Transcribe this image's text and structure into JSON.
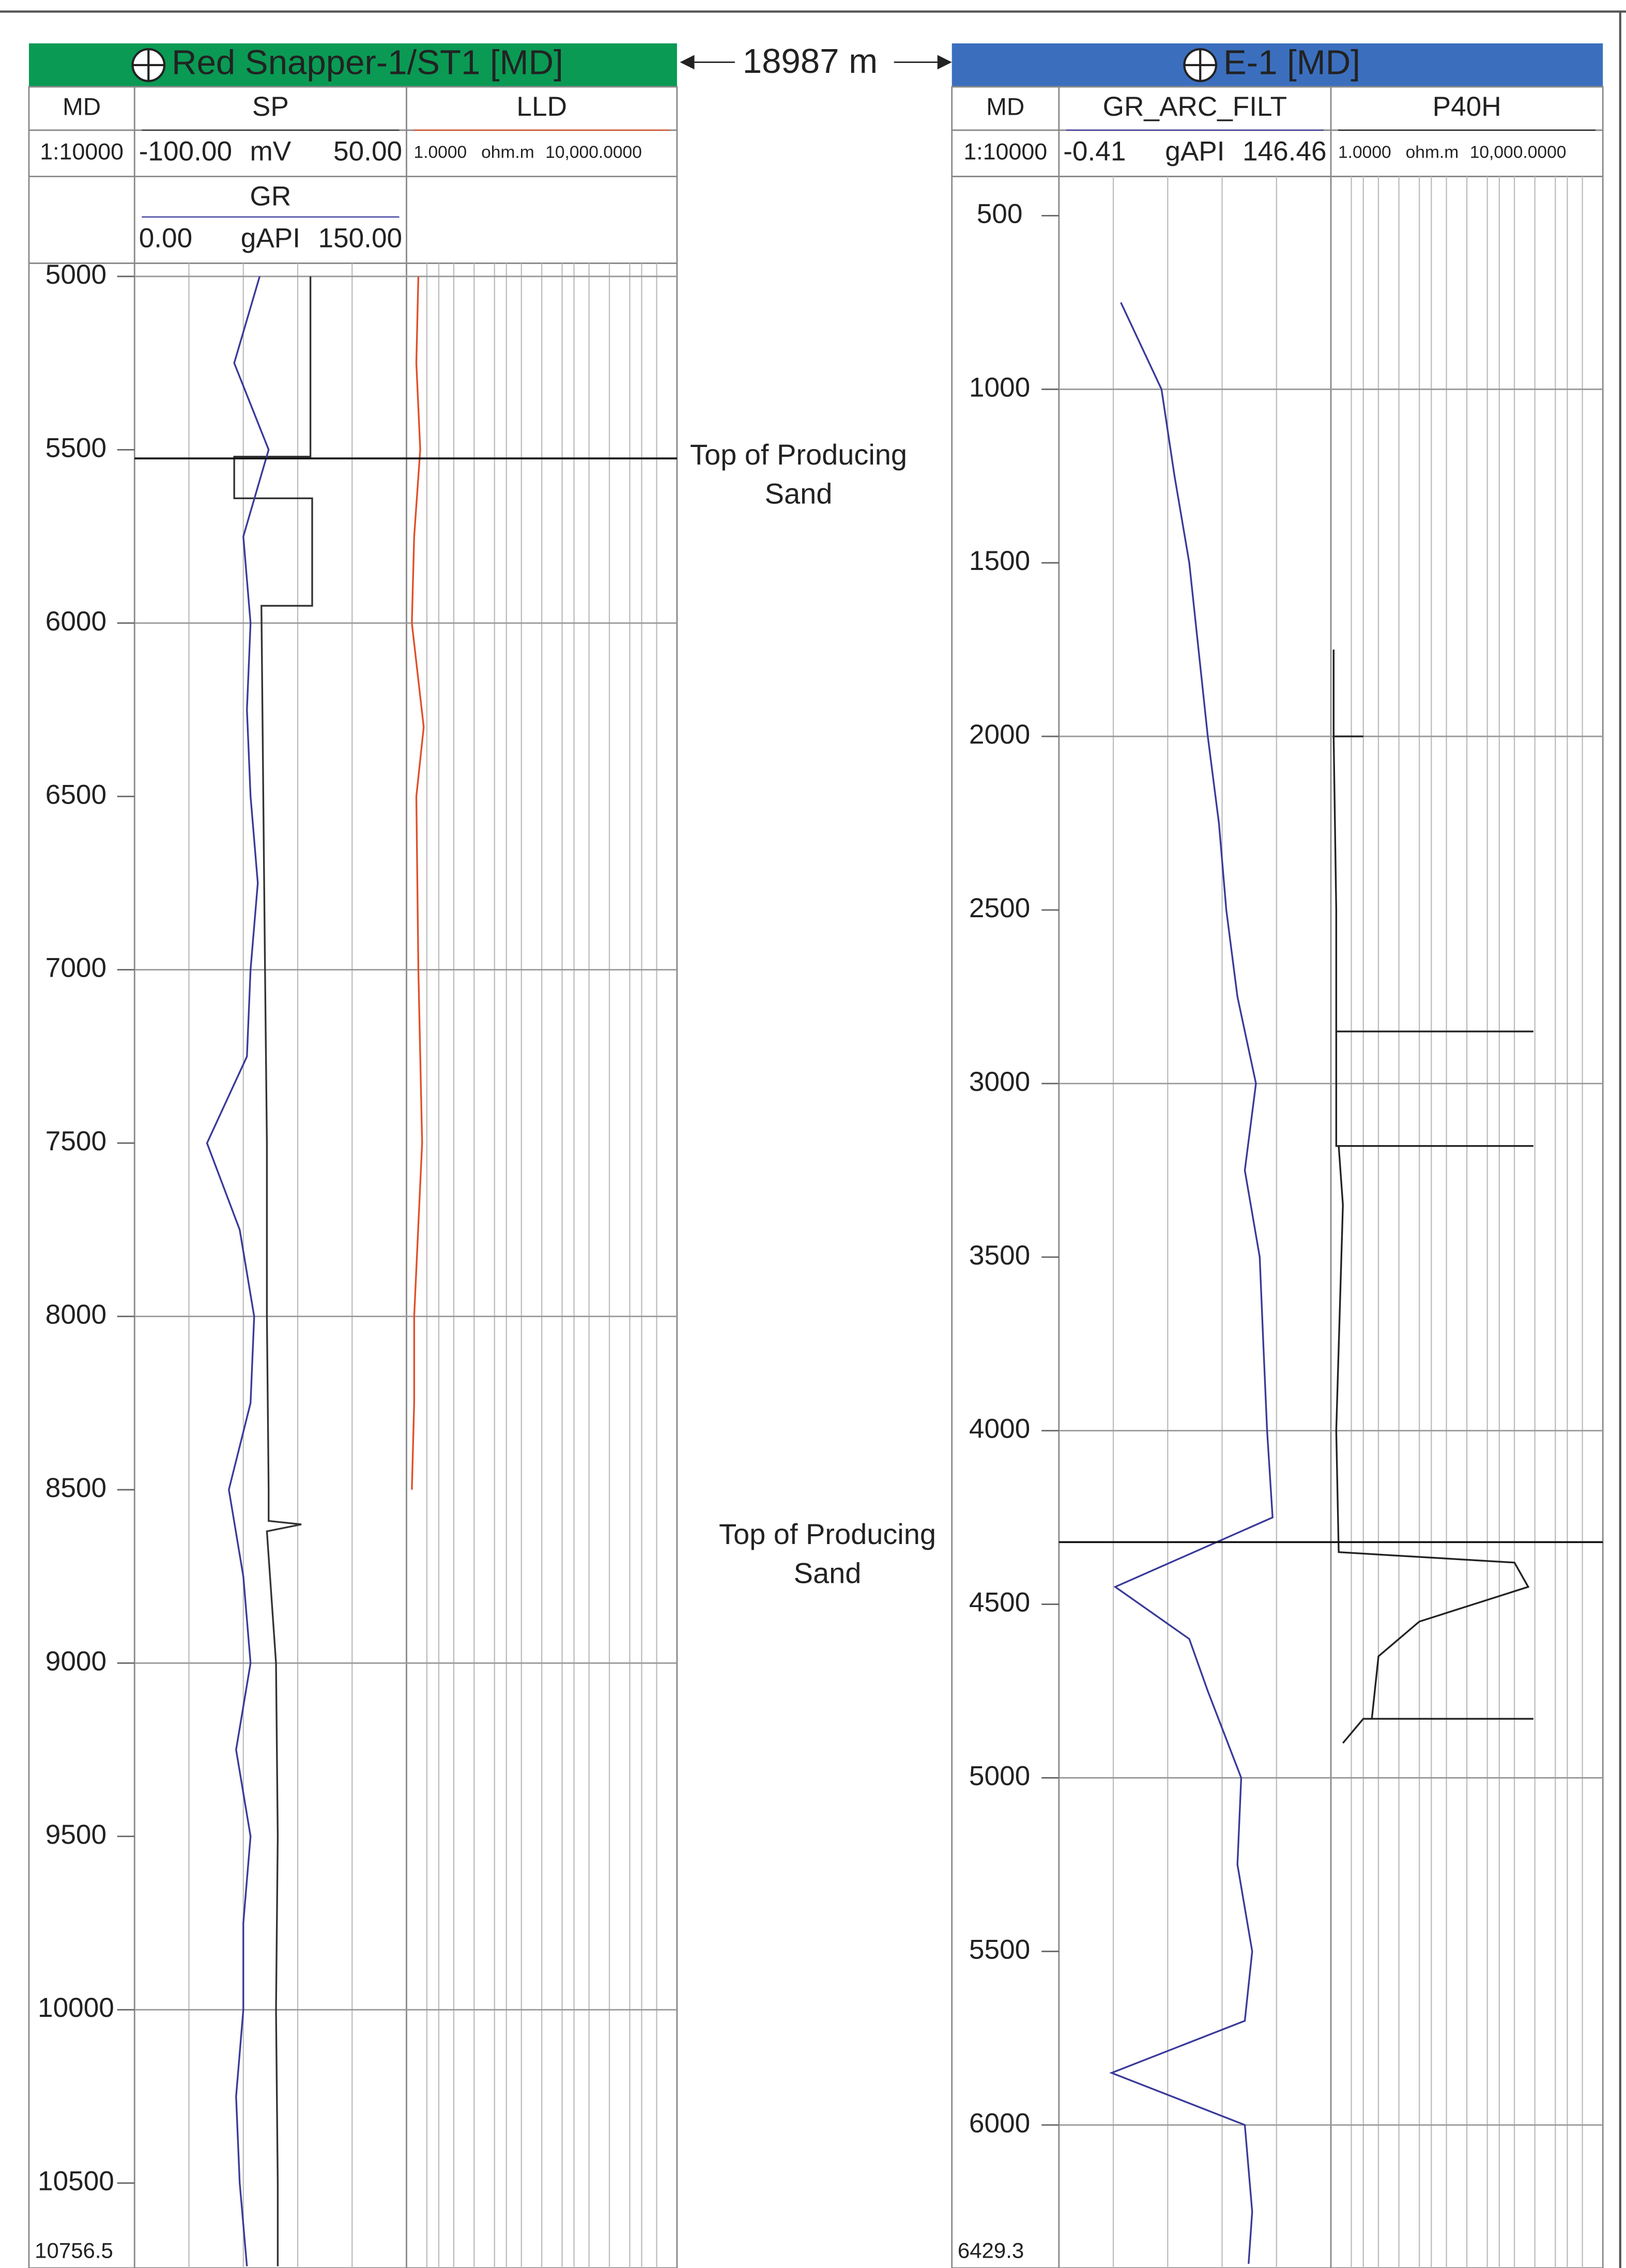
{
  "distance_label": "18987 m",
  "wells": [
    {
      "title": "Red Snapper-1/ST1 [MD]",
      "header_color": "#0a9a54",
      "depth_name": "MD",
      "depth_scale": "1:10000",
      "ylim": [
        4962,
        10745
      ],
      "depth_ticks": [
        5000,
        5500,
        6000,
        6500,
        7000,
        7500,
        8000,
        8500,
        9000,
        9500,
        10000,
        10500
      ],
      "bottom_depth": 10756.5,
      "marker": {
        "depth": 5525,
        "label": [
          "Top of Producing",
          "Sand"
        ]
      },
      "tracks": [
        {
          "name": "SP",
          "unit": "mV",
          "column": 1,
          "color": "#333333",
          "log_scale": false,
          "xlim": [
            {
              "value": -100,
              "label": "-100.00"
            },
            {
              "value": 50,
              "label": "50.00"
            }
          ],
          "depths": [
            5000,
            5520,
            5520,
            5640,
            5640,
            5950,
            5950,
            6500,
            7000,
            7500,
            8000,
            8500,
            8590,
            8600,
            8620,
            9000,
            9500,
            10000,
            10500,
            10740
          ],
          "values": [
            -3,
            -3,
            -45,
            -45,
            -2,
            -2,
            -30,
            -29,
            -28,
            -27,
            -27,
            -26,
            -26,
            -8,
            -27,
            -22,
            -21,
            -22,
            -21,
            -21
          ]
        },
        {
          "name": "GR",
          "unit": "gAPI",
          "column": 1,
          "color": "#3a3a9a",
          "log_scale": false,
          "xlim": [
            {
              "value": 0,
              "label": "0.00"
            },
            {
              "value": 150,
              "label": "150.00"
            }
          ],
          "depths": [
            5000,
            5250,
            5500,
            5750,
            6000,
            6250,
            6500,
            6750,
            7000,
            7250,
            7500,
            7750,
            8000,
            8250,
            8500,
            8750,
            9000,
            9250,
            9500,
            9750,
            10000,
            10250,
            10500,
            10740
          ],
          "values": [
            69,
            55,
            74,
            60,
            64,
            62,
            64,
            68,
            64,
            62,
            40,
            58,
            66,
            64,
            52,
            60,
            64,
            56,
            64,
            60,
            60,
            56,
            58,
            62
          ]
        },
        {
          "name": "LLD",
          "unit": "ohm.m",
          "column": 2,
          "color": "#e0502a",
          "log_scale": true,
          "xlim": [
            {
              "value": 1,
              "label": "1.0000"
            },
            {
              "value": 10000,
              "label": "10,000.0000"
            }
          ],
          "depths": [
            5000,
            5250,
            5500,
            5750,
            6000,
            6300,
            6500,
            7000,
            7500,
            8000,
            8250,
            8500
          ],
          "values": [
            1.5,
            1.4,
            1.6,
            1.3,
            1.2,
            1.8,
            1.4,
            1.5,
            1.7,
            1.3,
            1.3,
            1.2
          ]
        }
      ]
    },
    {
      "title": "E-1 [MD]",
      "header_color": "#3b6fbe",
      "depth_name": "MD",
      "depth_scale": "1:10000",
      "ylim": [
        387,
        6412
      ],
      "depth_ticks": [
        500,
        1000,
        1500,
        2000,
        2500,
        3000,
        3500,
        4000,
        4500,
        5000,
        5500,
        6000
      ],
      "bottom_depth": 6429.3,
      "marker": {
        "depth": 4321,
        "label": [
          "Top of Producing",
          "Sand"
        ]
      },
      "tracks": [
        {
          "name": "GR_ARC_FILT",
          "unit": "gAPI",
          "column": 1,
          "color": "#3a3a9a",
          "log_scale": false,
          "xlim": [
            {
              "value": -0.41,
              "label": "-0.41"
            },
            {
              "value": 146.46,
              "label": "146.46"
            }
          ],
          "depths": [
            750,
            1000,
            1250,
            1500,
            1750,
            2000,
            2250,
            2500,
            2750,
            3000,
            3250,
            3500,
            3750,
            4000,
            4250,
            4450,
            4600,
            4750,
            5000,
            5250,
            5500,
            5700,
            5850,
            6000,
            6250,
            6400
          ],
          "values": [
            33,
            55,
            62,
            70,
            75,
            80,
            86,
            90,
            96,
            106,
            100,
            108,
            110,
            112,
            115,
            30,
            70,
            80,
            98,
            96,
            104,
            100,
            28,
            100,
            104,
            102
          ]
        },
        {
          "name": "P40H",
          "unit": "ohm.m",
          "column": 2,
          "color": "#222222",
          "log_scale": true,
          "xlim": [
            {
              "value": 1,
              "label": "1.0000"
            },
            {
              "value": 10000,
              "label": "10,000.0000"
            }
          ],
          "depths": [
            1750,
            2000,
            2000,
            2000,
            2500,
            2850,
            2850,
            2850,
            3180,
            3180,
            3180,
            3350,
            4000,
            4350,
            4380,
            4450,
            4550,
            4650,
            4830,
            4830,
            4830,
            4900
          ],
          "values": [
            1.1,
            1.1,
            3,
            1.1,
            1.2,
            1.2,
            950,
            1.2,
            1.2,
            950,
            1.3,
            1.5,
            1.2,
            1.3,
            500,
            800,
            20,
            5,
            4,
            950,
            3,
            1.5
          ]
        }
      ]
    }
  ]
}
